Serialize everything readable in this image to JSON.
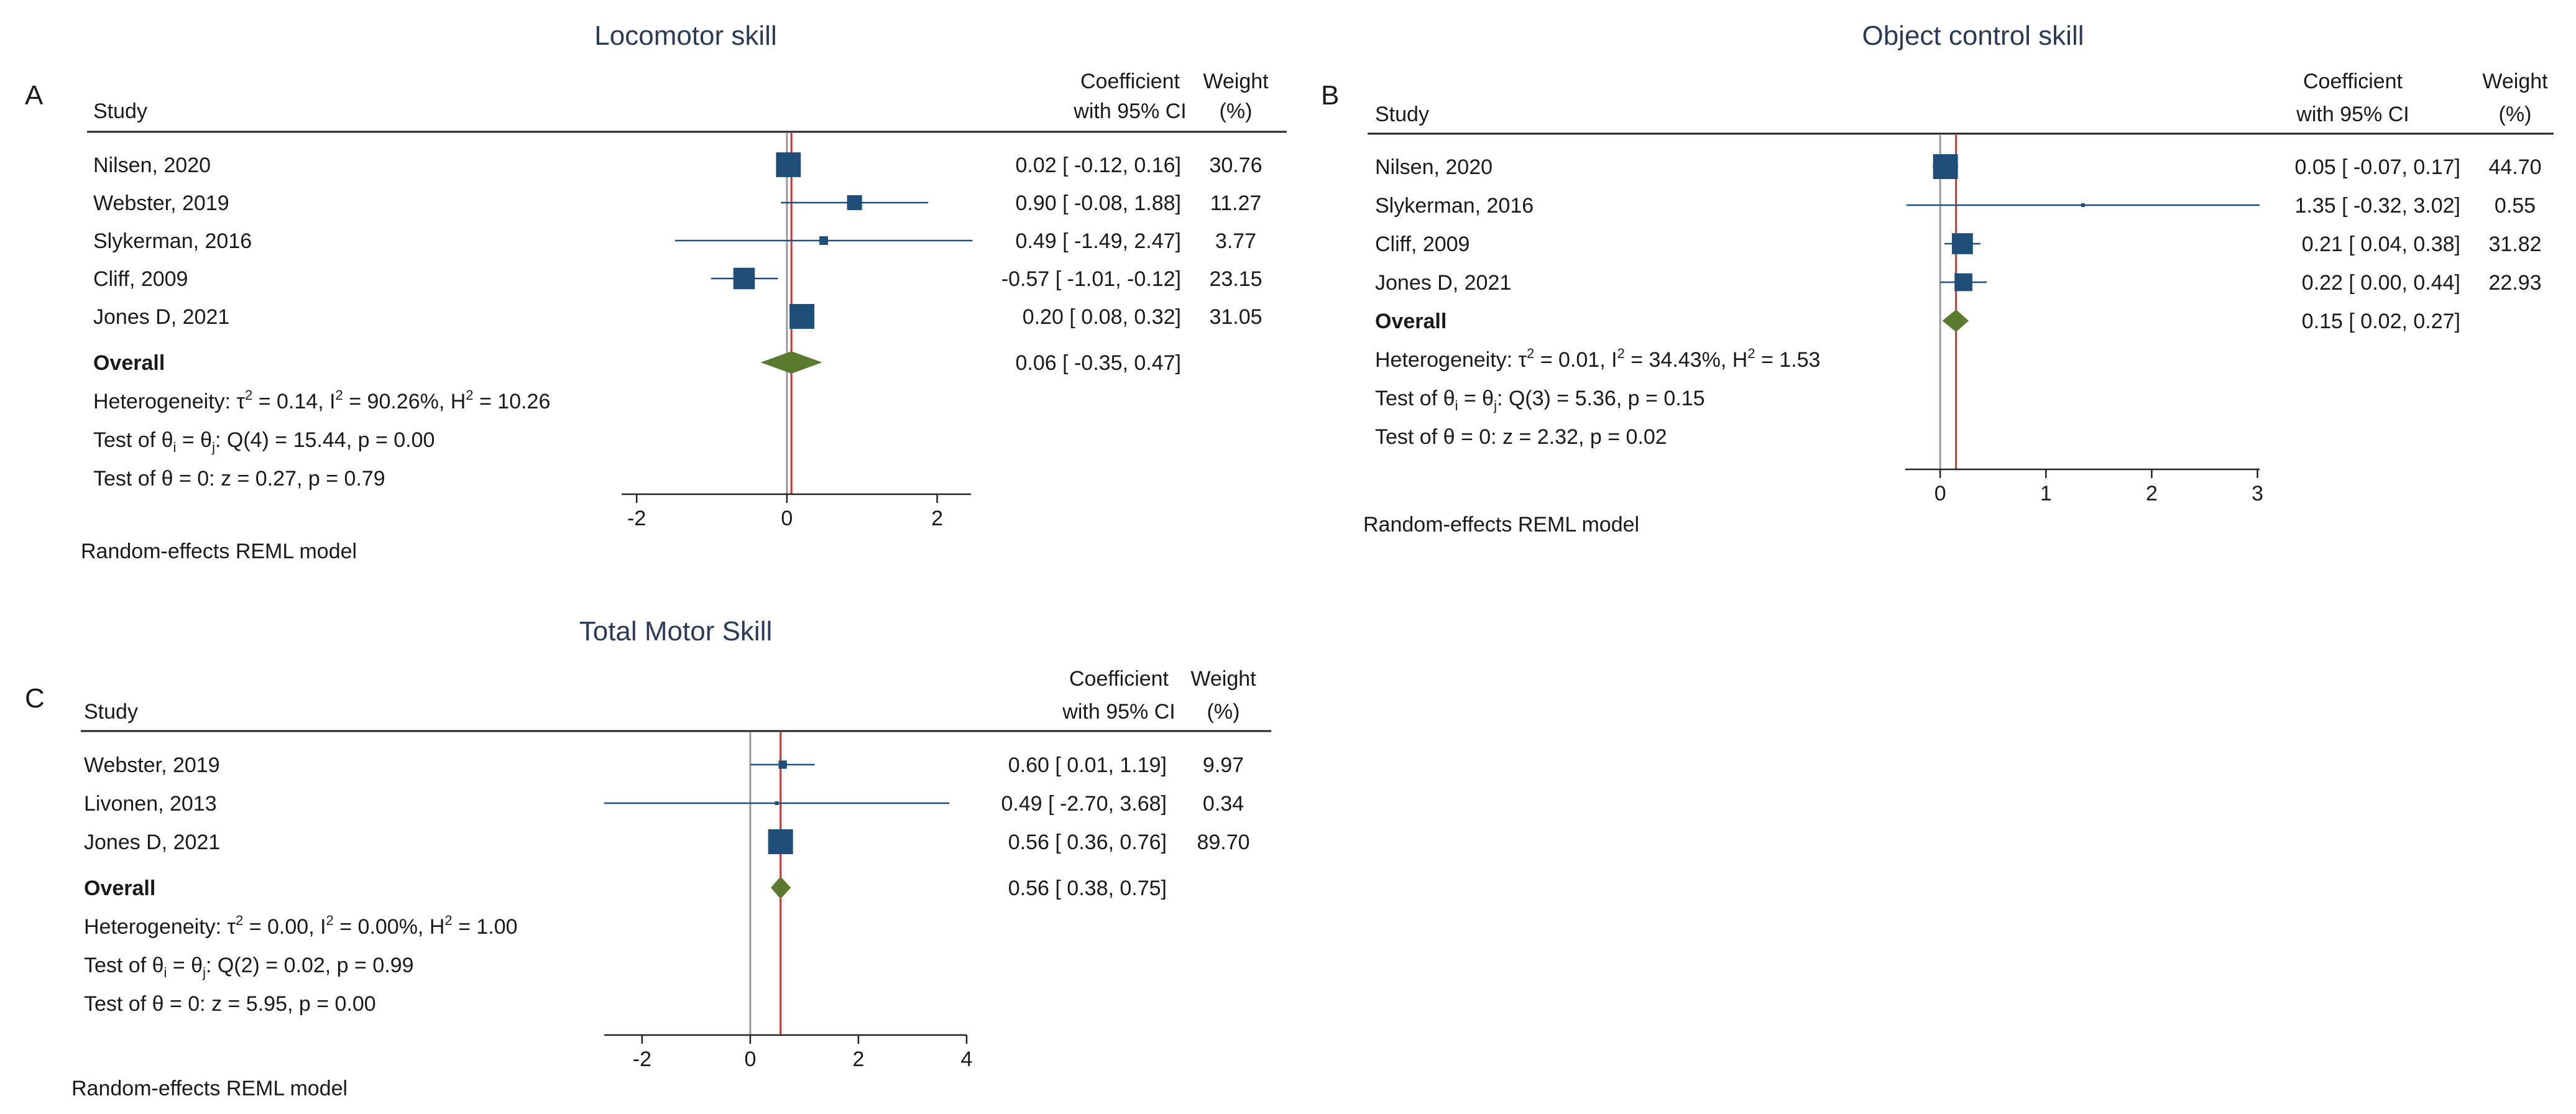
{
  "chart_data": [
    {
      "type": "forest",
      "panel_letter": "A",
      "title": "Locomotor skill",
      "header": {
        "study": "Study",
        "coef_line1": "Coefficient",
        "coef_line2": "with 95% CI",
        "weight_line1": "Weight",
        "weight_line2": "(%)"
      },
      "studies": [
        {
          "study": "Nilsen, 2020",
          "coef": 0.02,
          "lower": -0.12,
          "upper": 0.16,
          "ci_text": "0.02 [ -0.12,  0.16]",
          "weight": 30.76,
          "weight_text": "30.76"
        },
        {
          "study": "Webster, 2019",
          "coef": 0.9,
          "lower": -0.08,
          "upper": 1.88,
          "ci_text": "0.90 [ -0.08,  1.88]",
          "weight": 11.27,
          "weight_text": "11.27"
        },
        {
          "study": "Slykerman, 2016",
          "coef": 0.49,
          "lower": -1.49,
          "upper": 2.47,
          "ci_text": "0.49 [ -1.49,  2.47]",
          "weight": 3.77,
          "weight_text": "3.77"
        },
        {
          "study": "Cliff, 2009",
          "coef": -0.57,
          "lower": -1.01,
          "upper": -0.12,
          "ci_text": "-0.57 [ -1.01, -0.12]",
          "weight": 23.15,
          "weight_text": "23.15"
        },
        {
          "study": "Jones D, 2021",
          "coef": 0.2,
          "lower": 0.08,
          "upper": 0.32,
          "ci_text": "0.20 [  0.08,  0.32]",
          "weight": 31.05,
          "weight_text": "31.05"
        }
      ],
      "overall": {
        "label": "Overall",
        "coef": 0.06,
        "lower": -0.35,
        "upper": 0.47,
        "ci_text": "0.06 [ -0.35,  0.47]"
      },
      "heterogeneity": {
        "prefix": "Heterogeneity: ",
        "tau2": "0.14",
        "i2": "90.26%",
        "h2": "10.26"
      },
      "test_between": {
        "df": "4",
        "q": "15.44",
        "p": "0.00"
      },
      "test_zero": "Test of θ = 0: z = 0.27, p = 0.79",
      "x_ticks": [
        -2,
        0,
        2
      ],
      "xlim": [
        -2.2,
        2.45
      ],
      "footnote": "Random-effects REML model"
    },
    {
      "type": "forest",
      "panel_letter": "B",
      "title": "Object control skill",
      "header": {
        "study": "Study",
        "coef_line1": "Coefficient",
        "coef_line2": "with 95% CI",
        "weight_line1": "Weight",
        "weight_line2": "(%)"
      },
      "studies": [
        {
          "study": "Nilsen, 2020",
          "coef": 0.05,
          "lower": -0.07,
          "upper": 0.17,
          "ci_text": "0.05 [ -0.07,  0.17]",
          "weight": 44.7,
          "weight_text": "44.70"
        },
        {
          "study": "Slykerman, 2016",
          "coef": 1.35,
          "lower": -0.32,
          "upper": 3.02,
          "ci_text": "1.35 [ -0.32,  3.02]",
          "weight": 0.55,
          "weight_text": "0.55"
        },
        {
          "study": "Cliff, 2009",
          "coef": 0.21,
          "lower": 0.04,
          "upper": 0.38,
          "ci_text": "0.21 [  0.04,  0.38]",
          "weight": 31.82,
          "weight_text": "31.82"
        },
        {
          "study": "Jones D, 2021",
          "coef": 0.22,
          "lower": 0.0,
          "upper": 0.44,
          "ci_text": "0.22 [  0.00,  0.44]",
          "weight": 22.93,
          "weight_text": "22.93"
        }
      ],
      "overall": {
        "label": "Overall",
        "coef": 0.15,
        "lower": 0.02,
        "upper": 0.27,
        "ci_text": "0.15 [  0.02,  0.27]"
      },
      "heterogeneity": {
        "prefix": "Heterogeneity: ",
        "tau2": "0.01",
        "i2": "34.43%",
        "h2": "1.53"
      },
      "test_between": {
        "df": "3",
        "q": "5.36",
        "p": "0.15"
      },
      "test_zero": "Test of θ = 0: z = 2.32, p = 0.02",
      "x_ticks": [
        0,
        1,
        2,
        3
      ],
      "xlim": [
        -0.33,
        3.02
      ],
      "footnote": "Random-effects REML model"
    },
    {
      "type": "forest",
      "panel_letter": "C",
      "title": "Total Motor Skill",
      "header": {
        "study": "Study",
        "coef_line1": "Coefficient",
        "coef_line2": "with 95% CI",
        "weight_line1": "Weight",
        "weight_line2": "(%)"
      },
      "studies": [
        {
          "study": "Webster, 2019",
          "coef": 0.6,
          "lower": 0.01,
          "upper": 1.19,
          "ci_text": "0.60 [  0.01,  1.19]",
          "weight": 9.97,
          "weight_text": "9.97"
        },
        {
          "study": "Livonen, 2013",
          "coef": 0.49,
          "lower": -2.7,
          "upper": 3.68,
          "ci_text": "0.49 [ -2.70,  3.68]",
          "weight": 0.34,
          "weight_text": "0.34"
        },
        {
          "study": "Jones D, 2021",
          "coef": 0.56,
          "lower": 0.36,
          "upper": 0.76,
          "ci_text": "0.56 [  0.36,  0.76]",
          "weight": 89.7,
          "weight_text": "89.70"
        }
      ],
      "overall": {
        "label": "Overall",
        "coef": 0.56,
        "lower": 0.38,
        "upper": 0.75,
        "ci_text": "0.56 [  0.38,  0.75]"
      },
      "heterogeneity": {
        "prefix": "Heterogeneity: ",
        "tau2": "0.00",
        "i2": "0.00%",
        "h2": "1.00"
      },
      "test_between": {
        "df": "2",
        "q": "0.02",
        "p": "0.99"
      },
      "test_zero": "Test of θ = 0: z = 5.95, p = 0.00",
      "x_ticks": [
        -2,
        0,
        2,
        4
      ],
      "xlim": [
        -2.7,
        4.0
      ],
      "footnote": "Random-effects REML model"
    }
  ],
  "colors": {
    "marker": "#1f4e79",
    "diamond": "#5a7a2e",
    "refline": "#999999",
    "overall_line": "#cc3333",
    "title": "#2b3a55"
  }
}
